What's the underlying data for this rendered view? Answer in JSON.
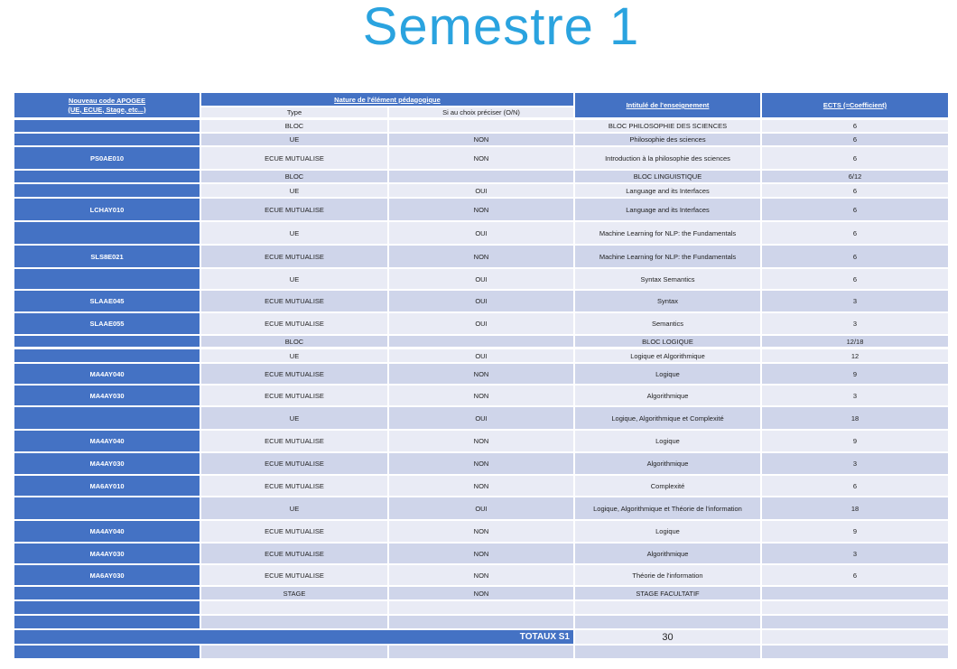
{
  "title": "Semestre 1",
  "header": {
    "code": "Nouveau code APOGEE (UE, ECUE, Stage, etc...)",
    "code_line1": "Nouveau code APOGEE",
    "code_line2": "(UE, ECUE, Stage, etc...)",
    "nature": "Nature de l'élément pédagogique",
    "type": "Type",
    "choix": "Si au choix préciser (O/N)",
    "intitule": "Intitulé de l'enseignement",
    "ects": "ECTS (=Coefficient)"
  },
  "rows": [
    {
      "code": "",
      "type": "BLOC",
      "choix": "",
      "intitule": "BLOC PHILOSOPHIE DES SCIENCES",
      "ects": "6"
    },
    {
      "code": "",
      "type": "UE",
      "choix": "NON",
      "intitule": "Philosophie des sciences",
      "ects": "6"
    },
    {
      "code": "PS0AE010",
      "type": "ECUE MUTUALISE",
      "choix": "NON",
      "intitule": "Introduction à la philosophie des sciences",
      "ects": "6"
    },
    {
      "code": "",
      "type": "BLOC",
      "choix": "",
      "intitule": "BLOC LINGUISTIQUE",
      "ects": "6/12"
    },
    {
      "code": "",
      "type": "UE",
      "choix": "OUI",
      "intitule": "Language and its Interfaces",
      "ects": "6"
    },
    {
      "code": "LCHAY010",
      "type": "ECUE MUTUALISE",
      "choix": "NON",
      "intitule": "Language and its Interfaces",
      "ects": "6"
    },
    {
      "code": "",
      "type": "UE",
      "choix": "OUI",
      "intitule": "Machine Learning for NLP: the Fundamentals",
      "ects": "6"
    },
    {
      "code": "SLS8E021",
      "type": "ECUE MUTUALISE",
      "choix": "NON",
      "intitule": "Machine Learning for NLP: the Fundamentals",
      "ects": "6"
    },
    {
      "code": "",
      "type": "UE",
      "choix": "OUI",
      "intitule": "Syntax Semantics",
      "ects": "6"
    },
    {
      "code": "SLAAE045",
      "type": "ECUE MUTUALISE",
      "choix": "OUI",
      "intitule": "Syntax",
      "ects": "3"
    },
    {
      "code": "SLAAE055",
      "type": "ECUE MUTUALISE",
      "choix": "OUI",
      "intitule": "Semantics",
      "ects": "3"
    },
    {
      "code": "",
      "type": "BLOC",
      "choix": "",
      "intitule": "BLOC LOGIQUE",
      "ects": "12/18"
    },
    {
      "code": "",
      "type": "UE",
      "choix": "OUI",
      "intitule": "Logique et Algorithmique",
      "ects": "12"
    },
    {
      "code": "MA4AY040",
      "type": "ECUE MUTUALISE",
      "choix": "NON",
      "intitule": "Logique",
      "ects": "9"
    },
    {
      "code": "MA4AY030",
      "type": "ECUE MUTUALISE",
      "choix": "NON",
      "intitule": "Algorithmique",
      "ects": "3"
    },
    {
      "code": "",
      "type": "UE",
      "choix": "OUI",
      "intitule": "Logique, Algorithmique et Complexité",
      "ects": "18"
    },
    {
      "code": "MA4AY040",
      "type": "ECUE MUTUALISE",
      "choix": "NON",
      "intitule": "Logique",
      "ects": "9"
    },
    {
      "code": "MA4AY030",
      "type": "ECUE MUTUALISE",
      "choix": "NON",
      "intitule": "Algorithmique",
      "ects": "3"
    },
    {
      "code": "MA6AY010",
      "type": "ECUE MUTUALISE",
      "choix": "NON",
      "intitule": "Complexité",
      "ects": "6"
    },
    {
      "code": "",
      "type": "UE",
      "choix": "OUI",
      "intitule": "Logique, Algorithmique et Théorie de l'information",
      "ects": "18"
    },
    {
      "code": "MA4AY040",
      "type": "ECUE MUTUALISE",
      "choix": "NON",
      "intitule": "Logique",
      "ects": "9"
    },
    {
      "code": "MA4AY030",
      "type": "ECUE MUTUALISE",
      "choix": "NON",
      "intitule": "Algorithmique",
      "ects": "3"
    },
    {
      "code": "MA6AY030",
      "type": "ECUE MUTUALISE",
      "choix": "NON",
      "intitule": "Théorie de l'information",
      "ects": "6"
    },
    {
      "code": "",
      "type": "STAGE",
      "choix": "NON",
      "intitule": "STAGE FACULTATIF",
      "ects": ""
    },
    {
      "code": "",
      "type": "",
      "choix": "",
      "intitule": "",
      "ects": ""
    },
    {
      "code": "",
      "type": "",
      "choix": "",
      "intitule": "",
      "ects": ""
    }
  ],
  "totals": {
    "label": "TOTAUX S1",
    "value": "30"
  },
  "colors": {
    "header_blue": "#4472c4",
    "row_light": "#e9ebf5",
    "row_dark": "#cfd5ea",
    "title": "#2aa3df"
  }
}
